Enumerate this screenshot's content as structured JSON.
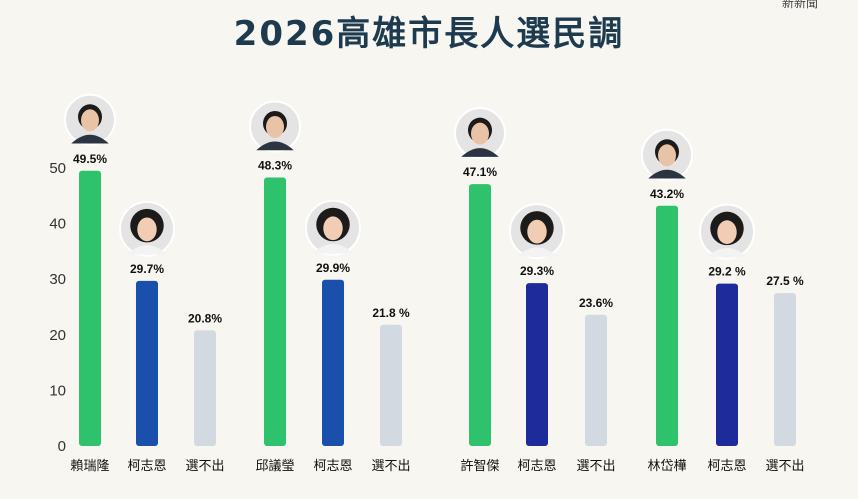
{
  "header": {
    "title": "2026高雄市長人選民調",
    "corner_text": "新新聞"
  },
  "colors": {
    "green": "#2dc26b",
    "blue_1": "#1a4fab",
    "blue_3": "#1e2b9a",
    "gray": "#d3d9e0",
    "title": "#1d3a4f"
  },
  "chart_data": {
    "type": "bar",
    "ylim": [
      0,
      50
    ],
    "yticks": [
      "0",
      "10",
      "20",
      "30",
      "40",
      "50"
    ],
    "grid": false,
    "groups": [
      {
        "candidate_icon": "candidate-1-photo",
        "bars": [
          {
            "category": "賴瑞隆",
            "value": 49.5,
            "label": "49.5%",
            "color": "#2dc26b",
            "avatar": "candidate-photo"
          },
          {
            "category": "柯志恩",
            "value": 29.7,
            "label": "29.7%",
            "color": "#1a4fab",
            "avatar": "ko-chih-en-photo"
          },
          {
            "category": "選不出",
            "value": 20.8,
            "label": "20.8%",
            "color": "#d3d9e0"
          }
        ]
      },
      {
        "candidate_icon": "candidate-2-photo",
        "bars": [
          {
            "category": "邱議瑩",
            "value": 48.3,
            "label": "48.3%",
            "color": "#2dc26b",
            "avatar": "candidate-photo"
          },
          {
            "category": "柯志恩",
            "value": 29.9,
            "label": "29.9%",
            "color": "#1a4fab",
            "avatar": "ko-chih-en-photo"
          },
          {
            "category": "選不出",
            "value": 21.8,
            "label": "21.8 %",
            "color": "#d3d9e0"
          }
        ]
      },
      {
        "candidate_icon": "candidate-3-photo",
        "bars": [
          {
            "category": "許智傑",
            "value": 47.1,
            "label": "47.1%",
            "color": "#2dc26b",
            "avatar": "candidate-photo"
          },
          {
            "category": "柯志恩",
            "value": 29.3,
            "label": "29.3%",
            "color": "#1e2b9a",
            "avatar": "ko-chih-en-photo"
          },
          {
            "category": "選不出",
            "value": 23.6,
            "label": "23.6%",
            "color": "#d3d9e0"
          }
        ]
      },
      {
        "candidate_icon": "candidate-4-photo",
        "bars": [
          {
            "category": "林岱樺",
            "value": 43.2,
            "label": "43.2%",
            "color": "#2dc26b",
            "avatar": "candidate-photo"
          },
          {
            "category": "柯志恩",
            "value": 29.2,
            "label": "29.2 %",
            "color": "#1e2b9a",
            "avatar": "ko-chih-en-photo"
          },
          {
            "category": "選不出",
            "value": 27.5,
            "label": "27.5 %",
            "color": "#d3d9e0"
          }
        ]
      }
    ]
  }
}
